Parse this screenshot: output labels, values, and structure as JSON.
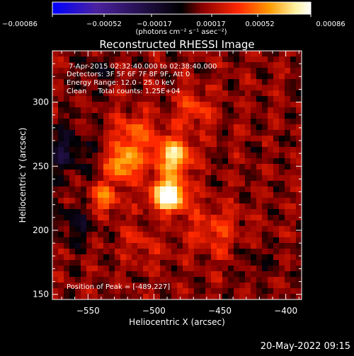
{
  "colorbar": {
    "ticks": [
      "−0.00086",
      "−0.00052",
      "−0.00017",
      "0.00017",
      "0.00052",
      "0.00086"
    ],
    "unit": "(photons cm⁻² s⁻¹ asec⁻²)",
    "colors": [
      "#0000ff",
      "#4b22a0",
      "#000000",
      "#8a0000",
      "#ff2800",
      "#ff9a00",
      "#fff2a0",
      "#ffffff"
    ]
  },
  "chart_data": {
    "type": "heatmap",
    "title": "Reconstructed RHESSI Image",
    "xlabel": "Heliocentric X (arcsec)",
    "ylabel": "Heliocentric Y (arcsec)",
    "xlim": [
      -577,
      -388
    ],
    "ylim": [
      146,
      340
    ],
    "xticks": [
      -550,
      -500,
      -450,
      -400
    ],
    "yticks": [
      150,
      200,
      250,
      300
    ],
    "xtick_labels": [
      "−550",
      "−500",
      "−450",
      "−400"
    ],
    "ytick_labels": [
      "150",
      "200",
      "250",
      "300"
    ],
    "info_lines": [
      "7-Apr-2015 02:32:40.000 to 02:38:40.000",
      "Detectors: 3F 5F 6F 7F 8F 9F, Att 0",
      "Energy Range: 12.0 - 25.0 keV",
      "Clean     Total counts: 1.25E+04"
    ],
    "peak_label": "Position of Peak = [-489,227]",
    "peak": [
      -489,
      227
    ],
    "sources": [
      {
        "x": -489,
        "y": 227,
        "intensity": 0.00086,
        "sigma": 9
      },
      {
        "x": -485,
        "y": 258,
        "intensity": 0.00058,
        "sigma": 10
      },
      {
        "x": -523,
        "y": 252,
        "intensity": 0.0005,
        "sigma": 9
      },
      {
        "x": -538,
        "y": 225,
        "intensity": 0.0004,
        "sigma": 8
      },
      {
        "x": -515,
        "y": 275,
        "intensity": 0.0003,
        "sigma": 12
      },
      {
        "x": -470,
        "y": 295,
        "intensity": 0.00025,
        "sigma": 10
      },
      {
        "x": -455,
        "y": 200,
        "intensity": 0.00022,
        "sigma": 14
      },
      {
        "x": -505,
        "y": 195,
        "intensity": 0.0002,
        "sigma": 12
      }
    ],
    "negative_regions": [
      {
        "x": -568,
        "y": 262,
        "intensity": -0.00025,
        "sigma": 14
      },
      {
        "x": -500,
        "y": 205,
        "intensity": -0.0002,
        "sigma": 8
      },
      {
        "x": -560,
        "y": 205,
        "intensity": -0.00018,
        "sigma": 12
      },
      {
        "x": -545,
        "y": 325,
        "intensity": -0.00015,
        "sigma": 10
      },
      {
        "x": -420,
        "y": 175,
        "intensity": -0.0001,
        "sigma": 10
      }
    ],
    "background": 0.00014,
    "vmin": -0.00086,
    "vmax": 0.00086
  },
  "footer": {
    "timestamp": "20-May-2022 09:15"
  }
}
